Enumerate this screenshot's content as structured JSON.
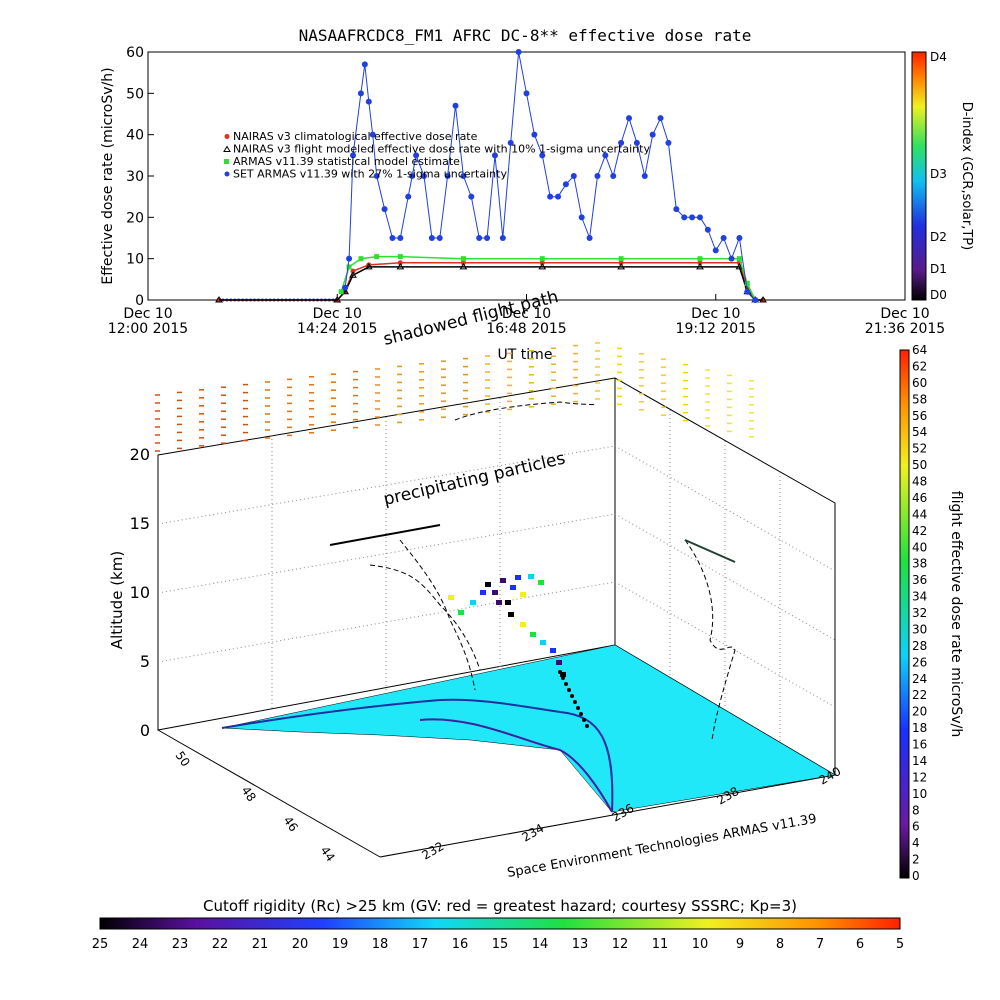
{
  "chart_data": [
    {
      "type": "line",
      "title": "NASAAFRCDC8_FM1 AFRC DC-8** effective dose rate",
      "xlabel": "UT time",
      "ylabel": "Effective dose rate (microSv/h)",
      "ylim": [
        0,
        60
      ],
      "y_ticks": [
        "0",
        "10",
        "20",
        "30",
        "40",
        "50",
        "60"
      ],
      "x_ticks": [
        {
          "line1": "Dec 10",
          "line2": "12:00 2015"
        },
        {
          "line1": "Dec 10",
          "line2": "14:24 2015"
        },
        {
          "line1": "Dec 10",
          "line2": "16:48 2015"
        },
        {
          "line1": "Dec 10",
          "line2": "19:12 2015"
        },
        {
          "line1": "Dec 10",
          "line2": "21:36 2015"
        }
      ],
      "x_unit": "hours UT",
      "xlim": [
        12.0,
        21.6
      ],
      "legend": [
        "NAIRAS v3 climatological effective dose rate",
        "NAIRAS v3 flight modeled effective dose rate with 10% 1-sigma uncertainty",
        "ARMAS v11.39 statistical model estimate",
        "SET ARMAS v11.39 with 27% 1-sigma uncertainty"
      ],
      "legend_placement": "top-left",
      "series": [
        {
          "name": "NAIRAS v3 climatological effective dose rate",
          "color": "#e03020",
          "x": [
            12.9,
            14.4,
            14.5,
            14.6,
            14.8,
            15.2,
            16.0,
            17.0,
            18.0,
            19.0,
            19.5,
            19.6,
            19.7,
            19.8
          ],
          "values": [
            0,
            0,
            2,
            7,
            8.5,
            9,
            9,
            9,
            9,
            9,
            9,
            3,
            0,
            0
          ]
        },
        {
          "name": "NAIRAS v3 flight modeled effective dose rate with 10% 1-sigma uncertainty",
          "color": "#000000",
          "x": [
            12.9,
            14.4,
            14.5,
            14.6,
            14.8,
            15.2,
            16.0,
            17.0,
            18.0,
            19.0,
            19.5,
            19.6,
            19.7,
            19.8
          ],
          "values": [
            0,
            0,
            2,
            6,
            8,
            8,
            8,
            8,
            8,
            8,
            8,
            2,
            0,
            0
          ]
        },
        {
          "name": "ARMAS v11.39 statistical model estimate",
          "color": "#30e030",
          "x": [
            14.45,
            14.55,
            14.7,
            14.9,
            15.2,
            16.0,
            17.0,
            18.0,
            19.0,
            19.5,
            19.6,
            19.7
          ],
          "values": [
            2,
            8,
            10,
            10.5,
            10.5,
            10,
            10,
            10,
            10,
            10,
            4,
            0
          ]
        },
        {
          "name": "SET ARMAS v11.39 with 27% 1-sigma uncertainty",
          "color": "#2040e0",
          "x": [
            14.5,
            14.55,
            14.6,
            14.7,
            14.75,
            14.8,
            14.85,
            14.9,
            15.0,
            15.1,
            15.2,
            15.3,
            15.35,
            15.4,
            15.5,
            15.6,
            15.7,
            15.8,
            15.9,
            16.0,
            16.1,
            16.2,
            16.3,
            16.4,
            16.5,
            16.6,
            16.7,
            16.8,
            16.9,
            17.0,
            17.1,
            17.2,
            17.3,
            17.4,
            17.5,
            17.6,
            17.7,
            17.8,
            17.9,
            18.0,
            18.1,
            18.2,
            18.3,
            18.4,
            18.5,
            18.6,
            18.7,
            18.8,
            18.9,
            19.0,
            19.1,
            19.2,
            19.3,
            19.4,
            19.5,
            19.6,
            19.7
          ],
          "values": [
            3,
            10,
            35,
            50,
            57,
            48,
            40,
            30,
            22,
            15,
            15,
            25,
            30,
            35,
            30,
            15,
            15,
            30,
            47,
            30,
            25,
            15,
            15,
            35,
            15,
            38,
            60,
            50,
            40,
            35,
            25,
            25,
            28,
            30,
            20,
            15,
            30,
            35,
            30,
            38,
            44,
            38,
            30,
            40,
            44,
            38,
            22,
            20,
            20,
            20,
            17,
            12,
            15,
            10,
            15,
            2,
            0
          ]
        }
      ]
    },
    {
      "type": "scatter",
      "title": "",
      "annotations": [
        "shadowed flight path",
        "precipitating particles",
        "Space Environment Technologies ARMAS v11.39"
      ],
      "zlabel": "Altitude (km)",
      "z_ticks": [
        "0",
        "5",
        "10",
        "15",
        "20"
      ],
      "zlim": [
        0,
        22
      ],
      "latitude_ticks": [
        "44",
        "46",
        "48",
        "50"
      ],
      "longitude_ticks": [
        "232",
        "234",
        "236",
        "238",
        "240"
      ],
      "colorbar_right": {
        "label": "flight effective dose rate microSv/h",
        "ticks": [
          "0",
          "2",
          "4",
          "6",
          "8",
          "10",
          "12",
          "14",
          "16",
          "18",
          "20",
          "22",
          "24",
          "26",
          "28",
          "30",
          "32",
          "34",
          "36",
          "38",
          "40",
          "42",
          "44",
          "46",
          "48",
          "50",
          "52",
          "54",
          "56",
          "58",
          "60",
          "62",
          "64"
        ],
        "range": [
          0,
          64
        ]
      },
      "colorbar_bottom": {
        "label": "Cutoff rigidity (Rc) >25 km (GV: red = greatest hazard; courtesy SSSRC; Kp=3)",
        "ticks": [
          "25",
          "24",
          "23",
          "22",
          "21",
          "20",
          "19",
          "18",
          "17",
          "16",
          "15",
          "14",
          "13",
          "12",
          "11",
          "10",
          "9",
          "8",
          "7",
          "6",
          "5"
        ],
        "range": [
          25,
          5
        ]
      },
      "colorbar_dindex": {
        "label": "D-index (GCR,solar,TP)",
        "ticks": [
          "D0",
          "D1",
          "D2",
          "D3",
          "D4"
        ]
      },
      "flight_path": {
        "altitude_km": [
          0,
          1,
          3,
          5,
          8,
          10,
          11,
          11,
          11,
          11.5,
          11,
          10,
          9,
          7,
          5,
          3,
          1,
          0
        ],
        "dose": [
          0,
          2,
          6,
          10,
          14,
          18,
          20,
          22,
          18,
          16,
          20,
          14,
          10,
          6,
          4,
          2,
          1,
          0
        ]
      }
    }
  ]
}
